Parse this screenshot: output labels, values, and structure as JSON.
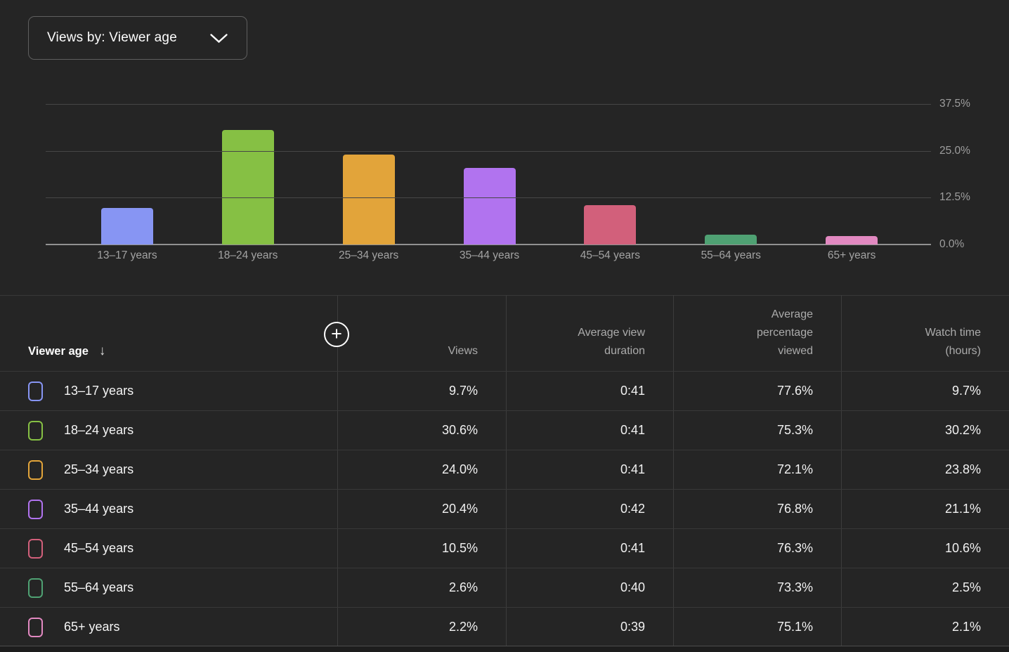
{
  "filter_bar": {
    "views_by_label": "Views by: Viewer age"
  },
  "chart_data": {
    "type": "bar",
    "metric": "Views",
    "categories": [
      "13–17 years",
      "18–24 years",
      "25–34 years",
      "35–44 years",
      "45–54 years",
      "55–64 years",
      "65+ years"
    ],
    "values": [
      9.7,
      30.6,
      24.0,
      20.4,
      10.5,
      2.6,
      2.2
    ],
    "unit": "%",
    "bar_colors": [
      "#8795F3",
      "#86C044",
      "#E2A43A",
      "#B173EF",
      "#D2607B",
      "#4FA173",
      "#E289C1"
    ],
    "y_ticks": [
      "37.5%",
      "25.0%",
      "12.5%",
      "0.0%"
    ],
    "ylim": [
      0,
      37.5
    ],
    "xlabel": "",
    "ylabel": "",
    "grid": true,
    "legend_position": "none"
  },
  "table": {
    "sort_icon": "↓",
    "add_icon": "+",
    "columns": [
      {
        "label": "Viewer age"
      },
      {
        "label": "Views"
      },
      {
        "label": "Average view duration"
      },
      {
        "label": "Average percentage viewed"
      },
      {
        "label": "Watch time (hours)"
      }
    ],
    "rows": [
      {
        "color": "#8795F3",
        "label": "13–17 years",
        "views": "9.7%",
        "duration": "0:41",
        "percentage": "77.6%",
        "watch_time": "9.7%"
      },
      {
        "color": "#86C044",
        "label": "18–24 years",
        "views": "30.6%",
        "duration": "0:41",
        "percentage": "75.3%",
        "watch_time": "30.2%"
      },
      {
        "color": "#E2A43A",
        "label": "25–34 years",
        "views": "24.0%",
        "duration": "0:41",
        "percentage": "72.1%",
        "watch_time": "23.8%"
      },
      {
        "color": "#B173EF",
        "label": "35–44 years",
        "views": "20.4%",
        "duration": "0:42",
        "percentage": "76.8%",
        "watch_time": "21.1%"
      },
      {
        "color": "#D2607B",
        "label": "45–54 years",
        "views": "10.5%",
        "duration": "0:41",
        "percentage": "76.3%",
        "watch_time": "10.6%"
      },
      {
        "color": "#4FA173",
        "label": "55–64 years",
        "views": "2.6%",
        "duration": "0:40",
        "percentage": "73.3%",
        "watch_time": "2.5%"
      },
      {
        "color": "#E289C1",
        "label": "65+ years",
        "views": "2.2%",
        "duration": "0:39",
        "percentage": "75.1%",
        "watch_time": "2.1%"
      }
    ]
  },
  "colors": {
    "background": "#252525",
    "gridline": "#464646",
    "axis_baseline": "#919191",
    "axis_label": "#9e9e9e",
    "table_border": "#383838",
    "header_text": "#ababab",
    "row_text": "#f1f1f1"
  }
}
